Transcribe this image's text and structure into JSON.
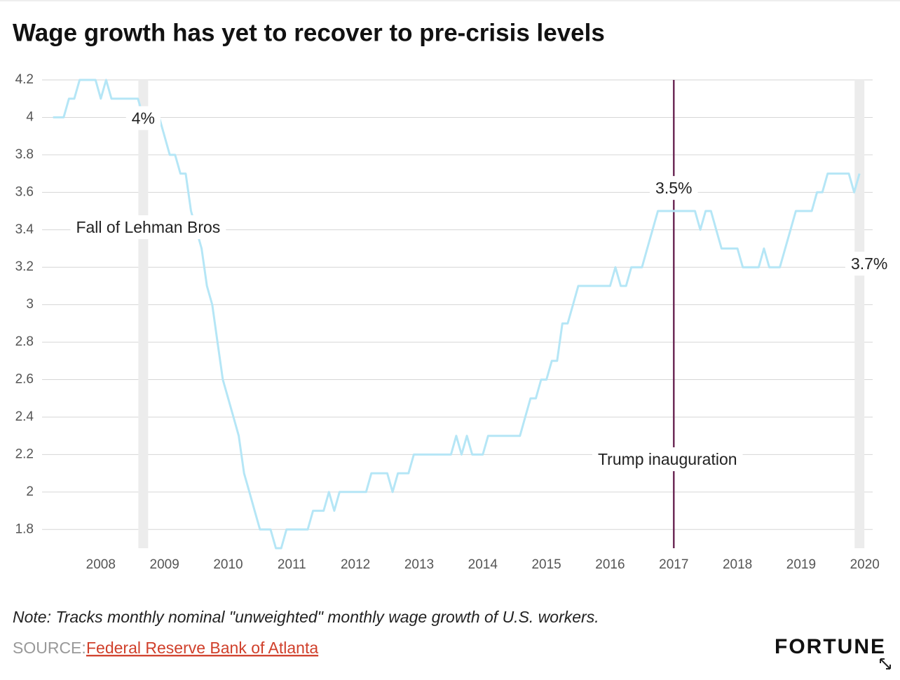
{
  "chart_data": {
    "type": "line",
    "title": "Wage growth has yet to recover to pre-crisis levels",
    "x": [
      "2007-04",
      "2007-05",
      "2007-06",
      "2007-07",
      "2007-08",
      "2007-09",
      "2007-10",
      "2007-11",
      "2007-12",
      "2008-01",
      "2008-02",
      "2008-03",
      "2008-04",
      "2008-05",
      "2008-06",
      "2008-07",
      "2008-08",
      "2008-09",
      "2008-10",
      "2008-11",
      "2008-12",
      "2009-01",
      "2009-02",
      "2009-03",
      "2009-04",
      "2009-05",
      "2009-06",
      "2009-07",
      "2009-08",
      "2009-09",
      "2009-10",
      "2009-11",
      "2009-12",
      "2010-01",
      "2010-02",
      "2010-03",
      "2010-04",
      "2010-05",
      "2010-06",
      "2010-07",
      "2010-08",
      "2010-09",
      "2010-10",
      "2010-11",
      "2010-12",
      "2011-01",
      "2011-02",
      "2011-03",
      "2011-04",
      "2011-05",
      "2011-06",
      "2011-07",
      "2011-08",
      "2011-09",
      "2011-10",
      "2011-11",
      "2011-12",
      "2012-01",
      "2012-02",
      "2012-03",
      "2012-04",
      "2012-05",
      "2012-06",
      "2012-07",
      "2012-08",
      "2012-09",
      "2012-10",
      "2012-11",
      "2012-12",
      "2013-01",
      "2013-02",
      "2013-03",
      "2013-04",
      "2013-05",
      "2013-06",
      "2013-07",
      "2013-08",
      "2013-09",
      "2013-10",
      "2013-11",
      "2013-12",
      "2014-01",
      "2014-02",
      "2014-03",
      "2014-04",
      "2014-05",
      "2014-06",
      "2014-07",
      "2014-08",
      "2014-09",
      "2014-10",
      "2014-11",
      "2014-12",
      "2015-01",
      "2015-02",
      "2015-03",
      "2015-04",
      "2015-05",
      "2015-06",
      "2015-07",
      "2015-08",
      "2015-09",
      "2015-10",
      "2015-11",
      "2015-12",
      "2016-01",
      "2016-02",
      "2016-03",
      "2016-04",
      "2016-05",
      "2016-06",
      "2016-07",
      "2016-08",
      "2016-09",
      "2016-10",
      "2016-11",
      "2016-12",
      "2017-01",
      "2017-02",
      "2017-03",
      "2017-04",
      "2017-05",
      "2017-06",
      "2017-07",
      "2017-08",
      "2017-09",
      "2017-10",
      "2017-11",
      "2017-12",
      "2018-01",
      "2018-02",
      "2018-03",
      "2018-04",
      "2018-05",
      "2018-06",
      "2018-07",
      "2018-08",
      "2018-09",
      "2018-10",
      "2018-11",
      "2018-12",
      "2019-01",
      "2019-02",
      "2019-03",
      "2019-04",
      "2019-05",
      "2019-06",
      "2019-07",
      "2019-08",
      "2019-09",
      "2019-10",
      "2019-11",
      "2019-12"
    ],
    "values": [
      4,
      4,
      4,
      4.1,
      4.1,
      4.2,
      4.2,
      4.2,
      4.2,
      4.1,
      4.2,
      4.1,
      4.1,
      4.1,
      4.1,
      4.1,
      4.1,
      4,
      4,
      4,
      4,
      3.9,
      3.8,
      3.8,
      3.7,
      3.7,
      3.5,
      3.4,
      3.3,
      3.1,
      3,
      2.8,
      2.6,
      2.5,
      2.4,
      2.3,
      2.1,
      2,
      1.9,
      1.8,
      1.8,
      1.8,
      1.7,
      1.7,
      1.8,
      1.8,
      1.8,
      1.8,
      1.8,
      1.9,
      1.9,
      1.9,
      2,
      1.9,
      2,
      2,
      2,
      2,
      2,
      2,
      2.1,
      2.1,
      2.1,
      2.1,
      2,
      2.1,
      2.1,
      2.1,
      2.2,
      2.2,
      2.2,
      2.2,
      2.2,
      2.2,
      2.2,
      2.2,
      2.3,
      2.2,
      2.3,
      2.2,
      2.2,
      2.2,
      2.3,
      2.3,
      2.3,
      2.3,
      2.3,
      2.3,
      2.3,
      2.4,
      2.5,
      2.5,
      2.6,
      2.6,
      2.7,
      2.7,
      2.9,
      2.9,
      3,
      3.1,
      3.1,
      3.1,
      3.1,
      3.1,
      3.1,
      3.1,
      3.2,
      3.1,
      3.1,
      3.2,
      3.2,
      3.2,
      3.3,
      3.4,
      3.5,
      3.5,
      3.5,
      3.5,
      3.5,
      3.5,
      3.5,
      3.5,
      3.4,
      3.5,
      3.5,
      3.4,
      3.3,
      3.3,
      3.3,
      3.3,
      3.2,
      3.2,
      3.2,
      3.2,
      3.3,
      3.2,
      3.2,
      3.2,
      3.3,
      3.4,
      3.5,
      3.5,
      3.5,
      3.5,
      3.6,
      3.6,
      3.7,
      3.7,
      3.7,
      3.7,
      3.7,
      3.6,
      3.7
    ],
    "color": "#b5e6f6",
    "xlim": [
      2007,
      2020.3
    ],
    "xticks": [
      2008,
      2009,
      2010,
      2011,
      2012,
      2013,
      2014,
      2015,
      2016,
      2017,
      2018,
      2019,
      2020
    ],
    "ylim": [
      1.7,
      4.2
    ],
    "yticks": [
      1.8,
      2,
      2.2,
      2.4,
      2.6,
      2.8,
      3,
      3.2,
      3.4,
      3.6,
      3.8,
      4,
      4.2
    ],
    "grid": true,
    "markers": [
      {
        "label": "Fall of Lehman Bros",
        "x": "2008-09",
        "value": 4,
        "value_label": "4%",
        "style": "band",
        "color": "#ececec"
      },
      {
        "label": "Trump inauguration",
        "x": "2017-01",
        "value": 3.5,
        "value_label": "3.5%",
        "style": "line",
        "color": "#6e2c58"
      },
      {
        "x": "2019-12",
        "value": 3.7,
        "value_label": "3.7%",
        "style": "band",
        "color": "#ececec"
      }
    ],
    "note": "Note: Tracks monthly nominal \"unweighted\" monthly wage growth of U.S. workers.",
    "source_label": "SOURCE:",
    "source": "Federal Reserve Bank of Atlanta",
    "brand": "FORTUNE"
  }
}
